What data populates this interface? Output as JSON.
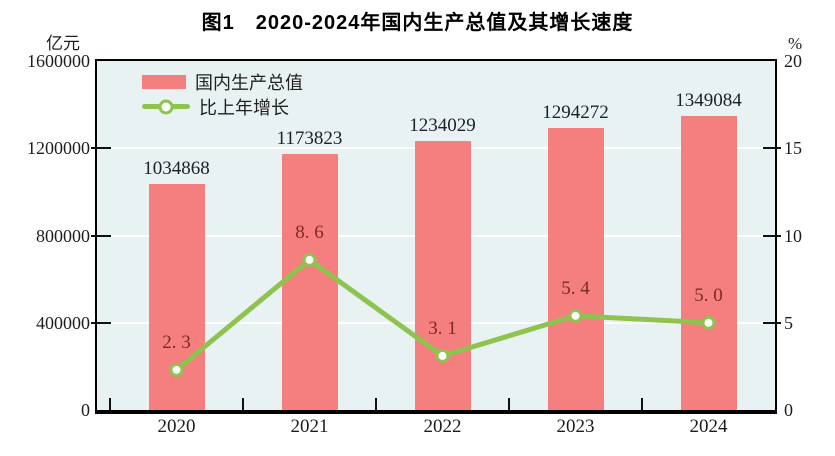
{
  "chart_data": {
    "type": "combo-bar-line",
    "title": "图1　2020-2024年国内生产总值及其增长速度",
    "categories": [
      "2020",
      "2021",
      "2022",
      "2023",
      "2024"
    ],
    "series": [
      {
        "name": "国内生产总值",
        "type": "bar",
        "axis": "left",
        "unit": "亿元",
        "values": [
          1034868,
          1173823,
          1234029,
          1294272,
          1349084
        ],
        "data_labels": [
          "1034868",
          "1173823",
          "1234029",
          "1294272",
          "1349084"
        ],
        "color": "#f57f7f"
      },
      {
        "name": "比上年增长",
        "type": "line",
        "axis": "right",
        "unit": "%",
        "values": [
          2.3,
          8.6,
          3.1,
          5.4,
          5.0
        ],
        "data_labels": [
          "2. 3",
          "8. 6",
          "3. 1",
          "5. 4",
          "5. 0"
        ],
        "color": "#8fc34f",
        "marker": "circle-white-fill"
      }
    ],
    "left_axis": {
      "label": "亿元",
      "min": 0,
      "max": 1600000,
      "tick_interval": 400000,
      "tick_labels": [
        "1600000",
        "1200000",
        "800000",
        "400000",
        "0"
      ]
    },
    "right_axis": {
      "label": "%",
      "min": 0,
      "max": 20,
      "tick_interval": 5,
      "tick_labels": [
        "20",
        "15",
        "10",
        "5",
        "0"
      ]
    },
    "grid": {
      "horizontal": true,
      "color": "#ffffff"
    },
    "legend": {
      "position": "top-left-inside",
      "entries": [
        "国内生产总值",
        "比上年增长"
      ]
    },
    "plot_background": "#e9f2f3"
  }
}
